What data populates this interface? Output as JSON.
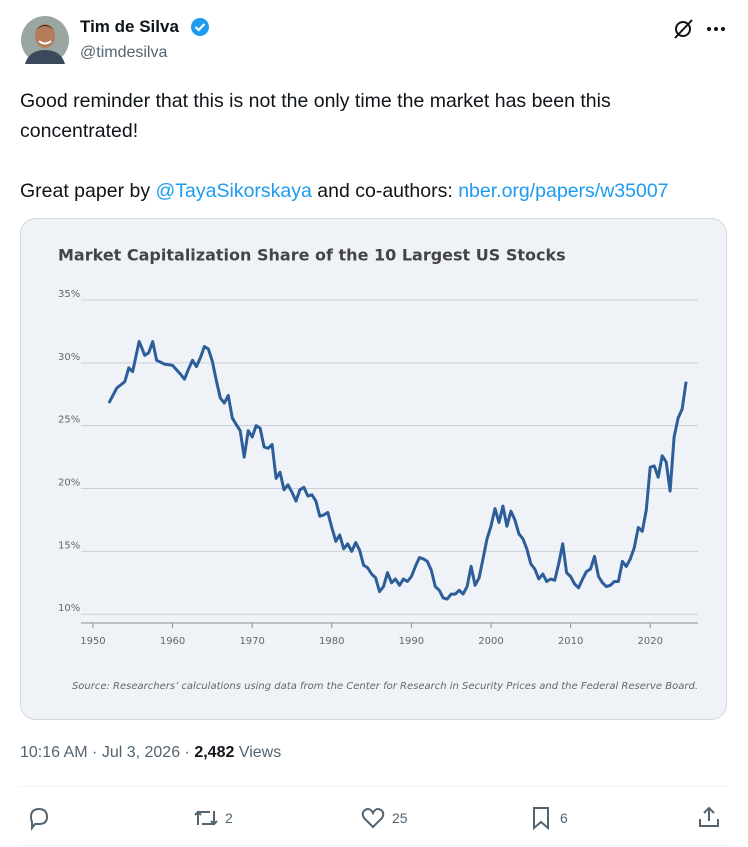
{
  "author": {
    "name": "Tim de Silva",
    "handle": "@timdesilva"
  },
  "tweet": {
    "text": "Good reminder that this is not the only time the market has been this concentrated!",
    "parts": [
      "Great paper by ",
      "@TayaSikorskaya",
      " and co-authors: ",
      "nber.org/papers/w35007"
    ]
  },
  "chart_data": {
    "type": "line",
    "title": "Market Capitalization Share of the 10 Largest US Stocks",
    "source": "Source: Researchers’ calculations using data from the Center for Research in Security Prices and the Federal Reserve Board.",
    "color": "#2d5e99",
    "grid": true,
    "xlim": [
      1948.5,
      2026
    ],
    "xticks": [
      1950,
      1960,
      1970,
      1980,
      1990,
      2000,
      2010,
      2020
    ],
    "ylim": [
      9.3,
      35
    ],
    "yticks": [
      {
        "value": 10,
        "label": "10%"
      },
      {
        "value": 15,
        "label": "15%"
      },
      {
        "value": 20,
        "label": "20%"
      },
      {
        "value": 25,
        "label": "25%"
      },
      {
        "value": 30,
        "label": "30%"
      },
      {
        "value": 35,
        "label": "35%"
      }
    ],
    "x": [
      1952,
      1953,
      1954,
      1954.5,
      1955,
      1955.8,
      1956,
      1956.5,
      1957,
      1957.5,
      1958,
      1959,
      1960,
      1961,
      1961.5,
      1962,
      1962.5,
      1963,
      1963.5,
      1964,
      1964.5,
      1965,
      1965.5,
      1966,
      1966.5,
      1967,
      1967.5,
      1968,
      1968.5,
      1969,
      1969.5,
      1970,
      1970.5,
      1971,
      1971.5,
      1972,
      1972.5,
      1973,
      1973.5,
      1974,
      1974.5,
      1975,
      1975.5,
      1976,
      1976.5,
      1977,
      1977.5,
      1978,
      1978.5,
      1979,
      1979.5,
      1980,
      1980.5,
      1981,
      1981.5,
      1982,
      1982.5,
      1983,
      1983.5,
      1984,
      1984.5,
      1985,
      1985.5,
      1986,
      1986.5,
      1987,
      1987.5,
      1988,
      1988.5,
      1989,
      1989.5,
      1990,
      1990.5,
      1991,
      1991.5,
      1992,
      1992.5,
      1993,
      1993.5,
      1994,
      1994.5,
      1995,
      1995.5,
      1996,
      1996.5,
      1997,
      1997.5,
      1998,
      1998.5,
      1999,
      1999.5,
      2000,
      2000.5,
      2001,
      2001.5,
      2002,
      2002.5,
      2003,
      2003.5,
      2004,
      2004.5,
      2005,
      2005.5,
      2006,
      2006.5,
      2007,
      2007.5,
      2008,
      2008.5,
      2009,
      2009.5,
      2010,
      2010.5,
      2011,
      2011.5,
      2012,
      2012.5,
      2013,
      2013.5,
      2014,
      2014.5,
      2015,
      2015.5,
      2016,
      2016.5,
      2017,
      2017.5,
      2018,
      2018.5,
      2019,
      2019.5,
      2020,
      2020.5,
      2021,
      2021.5,
      2022,
      2022.5,
      2023,
      2023.5,
      2024,
      2024.5
    ],
    "values": [
      26.8,
      28.0,
      28.5,
      29.6,
      29.3,
      31.7,
      31.4,
      30.6,
      30.8,
      31.7,
      30.2,
      29.9,
      29.8,
      29.1,
      28.7,
      29.5,
      30.2,
      29.7,
      30.4,
      31.3,
      31.1,
      30.1,
      28.6,
      27.2,
      26.8,
      27.4,
      25.6,
      25.1,
      24.6,
      22.5,
      24.6,
      24.1,
      25.0,
      24.8,
      23.3,
      23.2,
      23.5,
      20.8,
      21.3,
      19.9,
      20.3,
      19.7,
      19.0,
      19.9,
      20.1,
      19.4,
      19.5,
      19.0,
      17.8,
      17.9,
      18.1,
      16.9,
      15.8,
      16.3,
      15.2,
      15.6,
      15.0,
      15.7,
      15.1,
      13.9,
      13.7,
      13.2,
      12.9,
      11.8,
      12.2,
      13.3,
      12.5,
      12.8,
      12.3,
      12.8,
      12.6,
      13.0,
      13.8,
      14.5,
      14.4,
      14.2,
      13.5,
      12.2,
      11.9,
      11.3,
      11.2,
      11.6,
      11.6,
      11.9,
      11.6,
      12.2,
      13.8,
      12.3,
      12.9,
      14.4,
      16.0,
      17.0,
      18.4,
      17.3,
      18.6,
      17.0,
      18.2,
      17.5,
      16.4,
      16.0,
      15.2,
      14.0,
      13.6,
      12.8,
      13.2,
      12.6,
      12.8,
      12.7,
      14.0,
      15.6,
      13.3,
      13.0,
      12.4,
      12.1,
      12.8,
      13.4,
      13.6,
      14.6,
      13.0,
      12.5,
      12.2,
      12.3,
      12.6,
      12.6,
      14.2,
      13.8,
      14.4,
      15.3,
      16.9,
      16.6,
      18.3,
      21.7,
      21.8,
      20.9,
      22.6,
      22.1,
      19.8,
      24.1,
      25.6,
      26.3,
      28.5
    ]
  },
  "meta": {
    "timestamp": "10:16 AM · Jul 3, 2026 · ",
    "views": "2,482",
    "views_label": " Views"
  },
  "actions": {
    "retweets": 2,
    "likes": 25,
    "bookmarks": 6
  }
}
